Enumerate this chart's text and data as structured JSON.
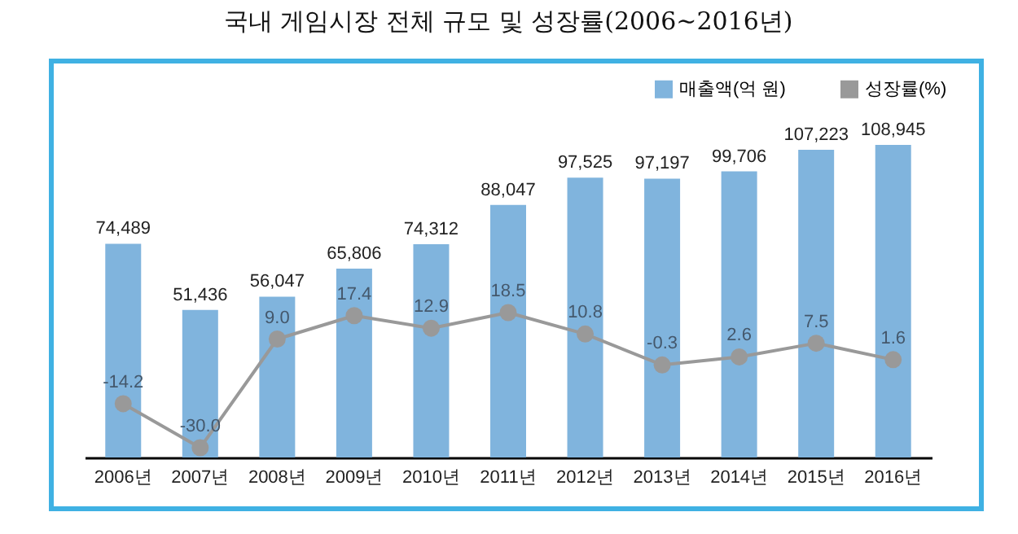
{
  "chart_data": {
    "type": "bar",
    "title": "국내 게임시장 전체 규모 및 성장률(2006~2016년)",
    "categories": [
      "2006년",
      "2007년",
      "2008년",
      "2009년",
      "2010년",
      "2011년",
      "2012년",
      "2013년",
      "2014년",
      "2015년",
      "2016년"
    ],
    "series": [
      {
        "name": "매출액(억 원)",
        "color": "#80b4dd",
        "values": [
          74489,
          51436,
          56047,
          65806,
          74312,
          88047,
          97525,
          97197,
          99706,
          107223,
          108945
        ],
        "value_labels": [
          "74,489",
          "51,436",
          "56,047",
          "65,806",
          "74,312",
          "88,047",
          "97,525",
          "97,197",
          "99,706",
          "107,223",
          "108,945"
        ]
      },
      {
        "name": "성장률(%)",
        "type": "line",
        "axis": "y2",
        "color": "#999999",
        "values": [
          -14.2,
          -30.0,
          9.0,
          17.4,
          12.9,
          18.5,
          10.8,
          -0.3,
          2.6,
          7.5,
          1.6
        ],
        "value_labels": [
          "-14.2",
          "-30.0",
          "9.0",
          "17.4",
          "12.9",
          "18.5",
          "10.8",
          "-0.3",
          "2.6",
          "7.5",
          "1.6"
        ]
      }
    ],
    "tick_labels": "x",
    "legend": "top right",
    "marker": "circle",
    "line_style": "solid"
  }
}
